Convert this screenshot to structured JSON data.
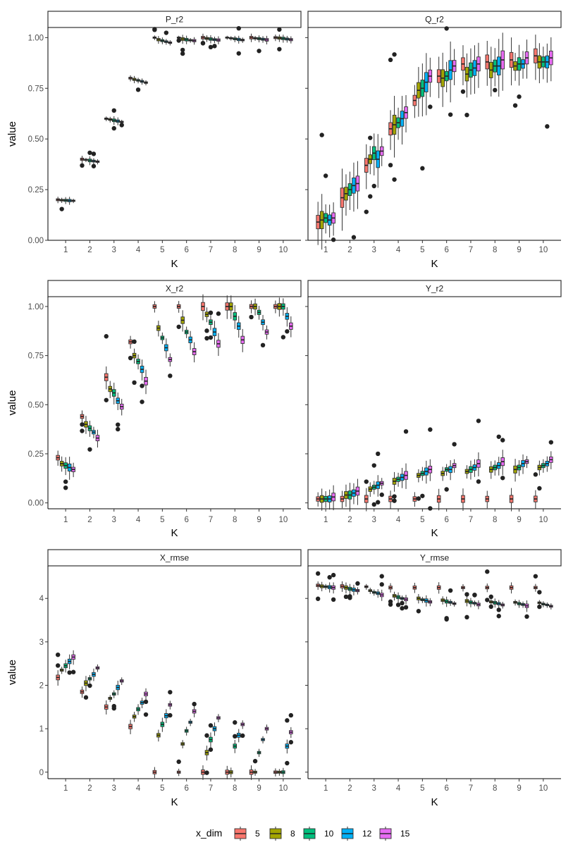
{
  "chart_data": {
    "type": "boxplot-facets",
    "facet_rows": 3,
    "facet_cols": 2,
    "xlabel": "K",
    "ylabel": "value",
    "categories": [
      "1",
      "2",
      "3",
      "4",
      "5",
      "6",
      "7",
      "8",
      "9",
      "10"
    ],
    "legend": {
      "title": "x_dim",
      "position": "bottom",
      "entries": [
        {
          "label": "5",
          "color": "#F8766D"
        },
        {
          "label": "8",
          "color": "#A3A500"
        },
        {
          "label": "10",
          "color": "#00BF7D"
        },
        {
          "label": "12",
          "color": "#00B0F6"
        },
        {
          "label": "15",
          "color": "#E76BF3"
        }
      ]
    },
    "panels": [
      {
        "strip": "P_r2",
        "row": 0,
        "col": 0,
        "ylim": [
          0,
          1.05
        ],
        "yticks": [
          "0.00",
          "0.25",
          "0.50",
          "0.75",
          "1.00"
        ],
        "yvals": [
          0,
          0.25,
          0.5,
          0.75,
          1.0
        ],
        "median": [
          [
            0.2,
            0.198,
            0.197,
            0.196,
            0.195
          ],
          [
            0.4,
            0.397,
            0.394,
            0.391,
            0.388
          ],
          [
            0.6,
            0.596,
            0.592,
            0.588,
            0.584
          ],
          [
            0.8,
            0.794,
            0.789,
            0.784,
            0.778
          ],
          [
            1.0,
            0.99,
            0.985,
            0.98,
            0.975
          ],
          [
            1.0,
            0.993,
            0.99,
            0.987,
            0.985
          ],
          [
            1.0,
            0.996,
            0.993,
            0.99,
            0.988
          ],
          [
            1.0,
            0.997,
            0.994,
            0.991,
            0.988
          ],
          [
            1.0,
            0.997,
            0.995,
            0.992,
            0.989
          ],
          [
            1.0,
            0.998,
            0.996,
            0.993,
            0.99
          ]
        ],
        "iqr": 0.01
      },
      {
        "strip": "Q_r2",
        "row": 0,
        "col": 1,
        "ylim": [
          0,
          1.05
        ],
        "yticks": [
          "0.00",
          "0.25",
          "0.50",
          "0.75",
          "1.00"
        ],
        "yvals": [
          0,
          0.25,
          0.5,
          0.75,
          1.0
        ],
        "median": [
          [
            0.09,
            0.1,
            0.11,
            0.1,
            0.11
          ],
          [
            0.21,
            0.23,
            0.25,
            0.27,
            0.28
          ],
          [
            0.37,
            0.4,
            0.43,
            0.4,
            0.44
          ],
          [
            0.55,
            0.57,
            0.58,
            0.6,
            0.63
          ],
          [
            0.69,
            0.74,
            0.75,
            0.78,
            0.81
          ],
          [
            0.81,
            0.8,
            0.81,
            0.84,
            0.86
          ],
          [
            0.87,
            0.82,
            0.84,
            0.85,
            0.87
          ],
          [
            0.88,
            0.84,
            0.86,
            0.86,
            0.89
          ],
          [
            0.89,
            0.86,
            0.87,
            0.87,
            0.9
          ],
          [
            0.91,
            0.88,
            0.88,
            0.88,
            0.9
          ]
        ],
        "iqr": 0.07
      },
      {
        "strip": "X_r2",
        "row": 1,
        "col": 0,
        "ylim": [
          -0.03,
          1.05
        ],
        "yticks": [
          "0.00",
          "0.25",
          "0.50",
          "0.75",
          "1.00"
        ],
        "yvals": [
          0,
          0.25,
          0.5,
          0.75,
          1.0
        ],
        "median": [
          [
            0.23,
            0.2,
            0.19,
            0.18,
            0.17
          ],
          [
            0.44,
            0.4,
            0.38,
            0.36,
            0.33
          ],
          [
            0.64,
            0.58,
            0.56,
            0.52,
            0.49
          ],
          [
            0.82,
            0.75,
            0.72,
            0.68,
            0.62
          ],
          [
            1.0,
            0.89,
            0.84,
            0.79,
            0.73
          ],
          [
            1.0,
            0.93,
            0.87,
            0.83,
            0.77
          ],
          [
            1.0,
            0.96,
            0.92,
            0.87,
            0.81
          ],
          [
            1.0,
            1.0,
            0.95,
            0.9,
            0.83
          ],
          [
            1.0,
            1.0,
            0.97,
            0.92,
            0.87
          ],
          [
            1.0,
            1.0,
            1.0,
            0.95,
            0.9
          ]
        ],
        "iqr": 0.03
      },
      {
        "strip": "Y_r2",
        "row": 1,
        "col": 1,
        "ylim": [
          -0.03,
          1.05
        ],
        "yticks": [
          "0.00",
          "0.25",
          "0.50",
          "0.75",
          "1.00"
        ],
        "yvals": [
          0,
          0.25,
          0.5,
          0.75,
          1.0
        ],
        "median": [
          [
            0.02,
            0.02,
            0.02,
            0.02,
            0.03
          ],
          [
            0.02,
            0.04,
            0.04,
            0.05,
            0.06
          ],
          [
            0.02,
            0.07,
            0.08,
            0.09,
            0.1
          ],
          [
            0.02,
            0.11,
            0.12,
            0.13,
            0.14
          ],
          [
            0.02,
            0.14,
            0.15,
            0.16,
            0.17
          ],
          [
            0.02,
            0.15,
            0.17,
            0.17,
            0.19
          ],
          [
            0.02,
            0.16,
            0.17,
            0.18,
            0.2
          ],
          [
            0.02,
            0.17,
            0.18,
            0.19,
            0.21
          ],
          [
            0.02,
            0.17,
            0.18,
            0.2,
            0.21
          ],
          [
            0.02,
            0.18,
            0.19,
            0.2,
            0.22
          ]
        ],
        "iqr": 0.03
      },
      {
        "strip": "X_rmse",
        "row": 2,
        "col": 0,
        "ylim": [
          -0.15,
          4.75
        ],
        "yticks": [
          "0",
          "1",
          "2",
          "3",
          "4"
        ],
        "yvals": [
          0,
          1,
          2,
          3,
          4
        ],
        "median": [
          [
            2.18,
            2.35,
            2.45,
            2.55,
            2.65
          ],
          [
            1.85,
            2.05,
            2.15,
            2.25,
            2.4
          ],
          [
            1.5,
            1.7,
            1.8,
            1.95,
            2.1
          ],
          [
            1.05,
            1.28,
            1.45,
            1.6,
            1.8
          ],
          [
            0.0,
            0.85,
            1.1,
            1.3,
            1.55
          ],
          [
            0.0,
            0.65,
            0.95,
            1.15,
            1.4
          ],
          [
            0.0,
            0.45,
            0.75,
            1.0,
            1.25
          ],
          [
            0.0,
            0.0,
            0.6,
            0.85,
            1.1
          ],
          [
            0.0,
            0.0,
            0.45,
            0.75,
            1.0
          ],
          [
            0.0,
            0.0,
            0.0,
            0.6,
            0.92
          ]
        ],
        "iqr": 0.08
      },
      {
        "strip": "Y_rmse",
        "row": 2,
        "col": 1,
        "ylim": [
          -0.15,
          4.75
        ],
        "yticks": [
          "0",
          "1",
          "2",
          "3",
          "4"
        ],
        "yvals": [
          0,
          1,
          2,
          3,
          4
        ],
        "median": [
          [
            4.3,
            4.28,
            4.27,
            4.26,
            4.25
          ],
          [
            4.28,
            4.25,
            4.22,
            4.2,
            4.18
          ],
          [
            4.27,
            4.18,
            4.14,
            4.12,
            4.08
          ],
          [
            4.25,
            4.06,
            4.03,
            4.0,
            3.98
          ],
          [
            4.25,
            4.0,
            3.97,
            3.95,
            3.92
          ],
          [
            4.25,
            3.96,
            3.93,
            3.91,
            3.88
          ],
          [
            4.25,
            3.94,
            3.91,
            3.89,
            3.86
          ],
          [
            4.25,
            3.92,
            3.9,
            3.88,
            3.85
          ],
          [
            4.25,
            3.91,
            3.88,
            3.86,
            3.83
          ],
          [
            4.25,
            3.9,
            3.87,
            3.85,
            3.82
          ]
        ],
        "iqr": 0.06
      }
    ]
  }
}
